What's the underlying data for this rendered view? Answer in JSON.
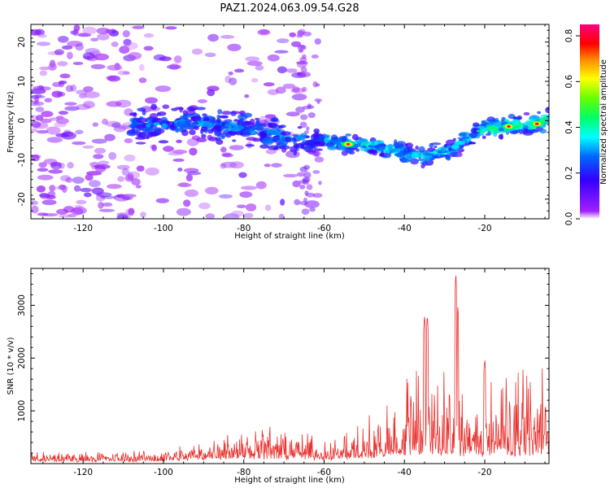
{
  "title": "PAZ1.2024.063.09.54.G28",
  "colors": {
    "snr_line": "#e8322f",
    "axes": "#000000",
    "background": "#ffffff"
  },
  "chart_data": [
    {
      "type": "heatmap",
      "xlabel": "Height of straight line (km)",
      "ylabel": "Frequency (Hz)",
      "xlim": [
        -133,
        -4
      ],
      "ylim": [
        -25,
        24.5
      ],
      "xticks": [
        -120,
        -100,
        -80,
        -60,
        -40,
        -20
      ],
      "yticks": [
        -20,
        -10,
        0,
        10,
        20
      ],
      "colorbar": {
        "label": "Normalized spectral amplitude",
        "range": [
          0,
          0.85
        ],
        "ticks": [
          0.0,
          0.2,
          0.4,
          0.6,
          0.8
        ],
        "colormap": "gist_rainbow_r (white at 0)"
      },
      "ridge": {
        "description_points_height_km": [
          -105,
          -95,
          -85,
          -75,
          -65,
          -60,
          -55,
          -50,
          -45,
          -40,
          -35,
          -30,
          -25,
          -20,
          -15,
          -10,
          -5
        ],
        "frequency_hz": [
          -1,
          -0.5,
          -1,
          -3,
          -5.5,
          -5,
          -6,
          -6,
          -7,
          -8,
          -9,
          -8,
          -5,
          -2,
          -1.5,
          -1,
          0
        ]
      },
      "peak_amplitude_points": [
        {
          "x": -54,
          "y": -6,
          "amplitude": 0.75
        },
        {
          "x": -14,
          "y": -1.5,
          "amplitude": 0.8
        },
        {
          "x": -7,
          "y": -0.8,
          "amplitude": 0.78
        }
      ]
    },
    {
      "type": "line",
      "xlabel": "Height of straight line (km)",
      "ylabel": "SNR (10 * v/v)",
      "xlim": [
        -133,
        -4
      ],
      "ylim": [
        0,
        3700
      ],
      "xticks": [
        -120,
        -100,
        -80,
        -60,
        -40,
        -20
      ],
      "yticks": [
        1000,
        2000,
        3000
      ],
      "envelope": {
        "x": [
          -133,
          -110,
          -100,
          -95,
          -90,
          -85,
          -80,
          -75,
          -70,
          -65,
          -60,
          -55,
          -50,
          -45,
          -40,
          -35,
          -30,
          -25,
          -20,
          -15,
          -10,
          -4
        ],
        "y": [
          150,
          150,
          180,
          250,
          350,
          450,
          500,
          500,
          450,
          400,
          350,
          400,
          500,
          650,
          850,
          1000,
          950,
          850,
          800,
          850,
          950,
          1050
        ]
      },
      "spikes": [
        {
          "x": -35,
          "y": 2850
        },
        {
          "x": -34.3,
          "y": 2850
        },
        {
          "x": -27.2,
          "y": 3650
        },
        {
          "x": -26.7,
          "y": 3000
        },
        {
          "x": -20,
          "y": 2000
        }
      ]
    }
  ]
}
